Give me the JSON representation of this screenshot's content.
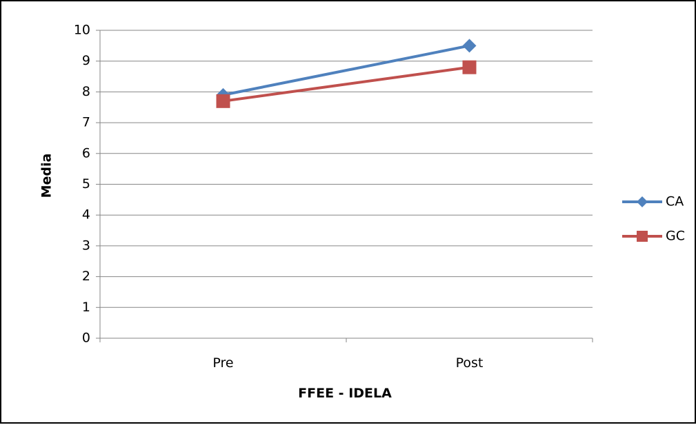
{
  "chart_data": {
    "type": "line",
    "title": "",
    "xlabel": "FFEE - IDELA",
    "ylabel": "Media",
    "categories": [
      "Pre",
      "Post"
    ],
    "ylim": [
      0,
      10
    ],
    "yticks": [
      "0",
      "1",
      "2",
      "3",
      "4",
      "5",
      "6",
      "7",
      "8",
      "9",
      "10"
    ],
    "grid": true,
    "legend_position": "right",
    "series": [
      {
        "name": "CA",
        "values": [
          7.9,
          9.5
        ],
        "color": "#4F81BD",
        "marker": "diamond"
      },
      {
        "name": "GC",
        "values": [
          7.7,
          8.8
        ],
        "color": "#C0504D",
        "marker": "square"
      }
    ]
  }
}
